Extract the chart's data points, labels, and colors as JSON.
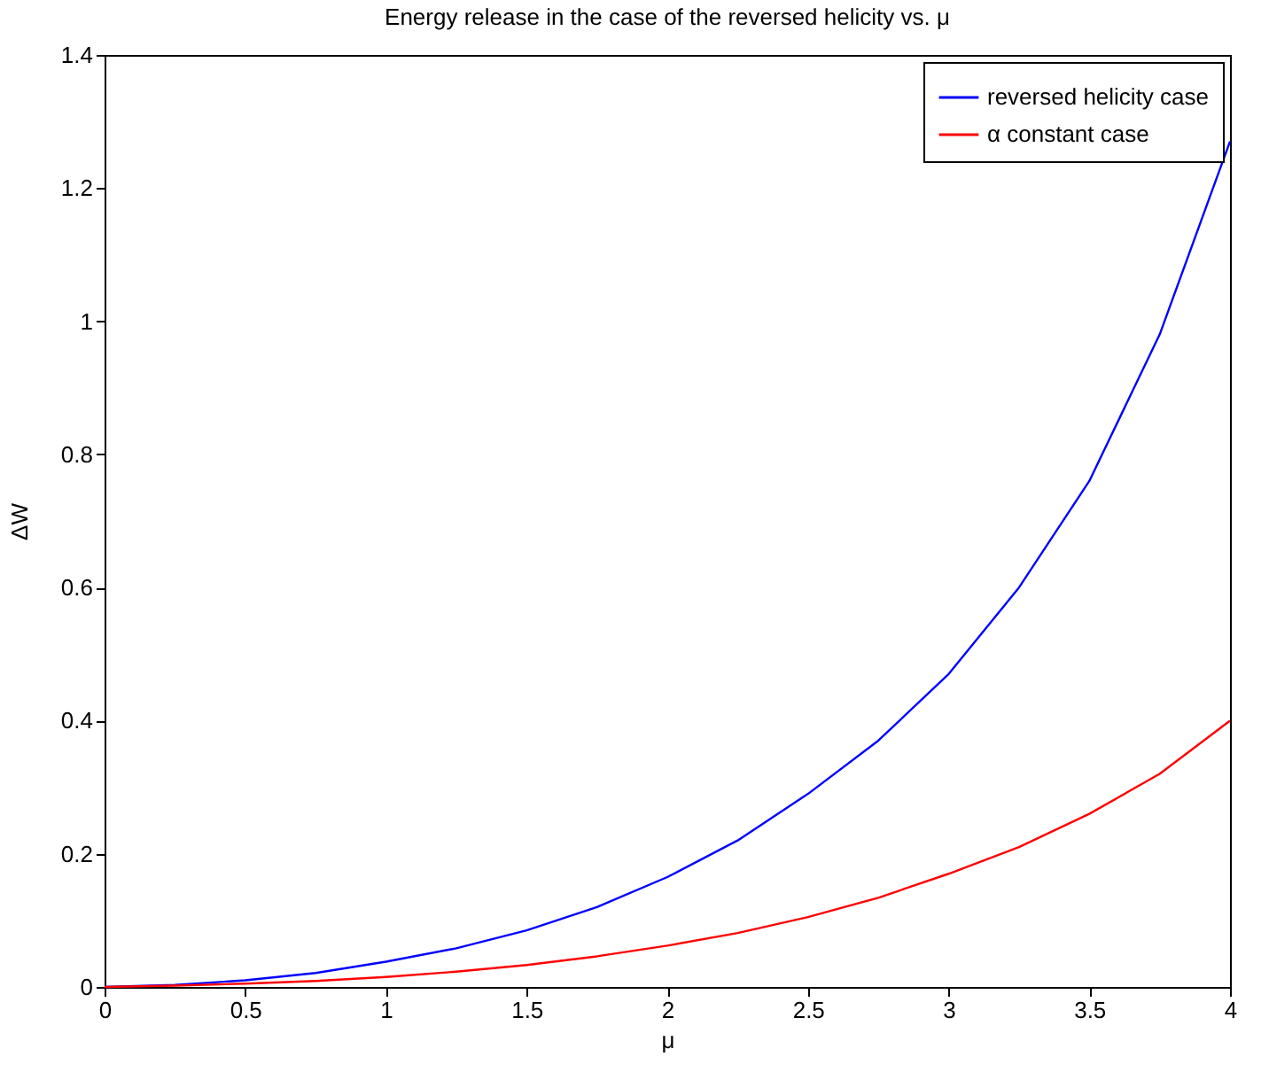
{
  "chart_data": {
    "type": "line",
    "title": "Energy release in the case of the reversed helicity vs. μ",
    "xlabel": "μ",
    "ylabel": "ΔW",
    "x": [
      0,
      0.25,
      0.5,
      0.75,
      1,
      1.25,
      1.5,
      1.75,
      2,
      2.25,
      2.5,
      2.75,
      3,
      3.25,
      3.5,
      3.75,
      4
    ],
    "series": [
      {
        "name": "reversed helicity case",
        "color": "#0000ff",
        "values": [
          0,
          0.003,
          0.01,
          0.021,
          0.038,
          0.058,
          0.085,
          0.12,
          0.165,
          0.22,
          0.29,
          0.37,
          0.47,
          0.6,
          0.76,
          0.98,
          1.27
        ]
      },
      {
        "name": "α constant case",
        "color": "#ff0000",
        "values": [
          0,
          0.002,
          0.005,
          0.009,
          0.015,
          0.023,
          0.033,
          0.046,
          0.062,
          0.081,
          0.105,
          0.134,
          0.17,
          0.21,
          0.26,
          0.32,
          0.4
        ]
      }
    ],
    "xlim": [
      0,
      4
    ],
    "xticks": [
      0,
      0.5,
      1,
      1.5,
      2,
      2.5,
      3,
      3.5,
      4
    ],
    "ylim": [
      0,
      1.4
    ],
    "yticks": [
      0,
      0.2,
      0.4,
      0.6,
      0.8,
      1,
      1.2,
      1.4
    ],
    "legend": "top right",
    "grid": false
  }
}
